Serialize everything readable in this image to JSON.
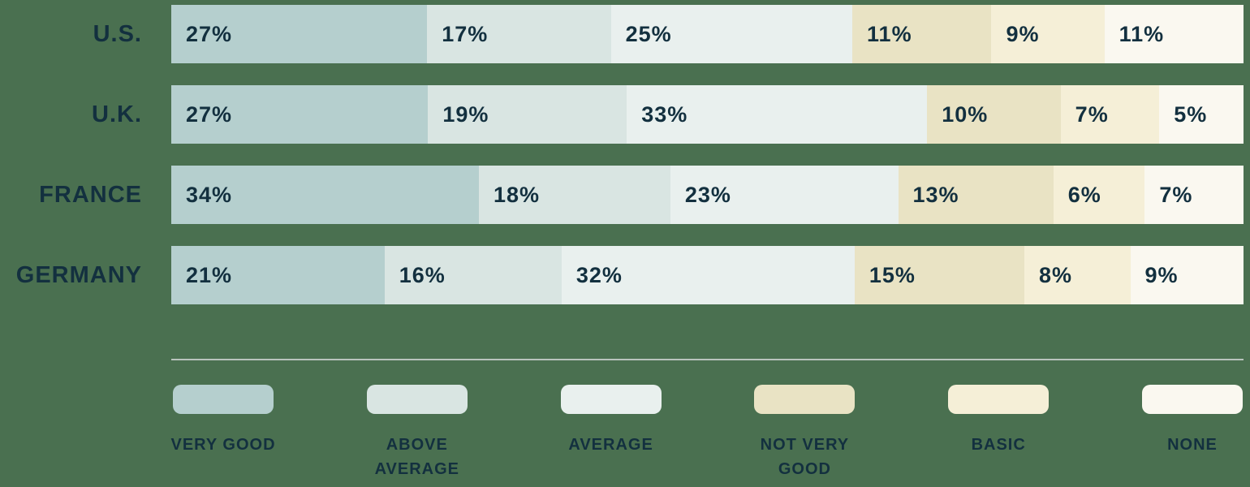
{
  "colors": {
    "background": "#4a7050",
    "text": "#13303f",
    "divider": "#b9c3bd"
  },
  "chart_data": {
    "type": "bar",
    "orientation": "horizontal",
    "stacked": true,
    "normalized_to_100_percent": true,
    "grid": false,
    "legend_position": "bottom",
    "value_suffix": "%",
    "categories": [
      "U.S.",
      "U.K.",
      "FRANCE",
      "GERMANY"
    ],
    "series": [
      {
        "name": "VERY GOOD",
        "label_lines": [
          "VERY GOOD"
        ],
        "color": "#b5cfce",
        "values": [
          27,
          27,
          34,
          21
        ]
      },
      {
        "name": "ABOVE AVERAGE",
        "label_lines": [
          "ABOVE",
          "AVERAGE"
        ],
        "color": "#d9e5e2",
        "values": [
          17,
          19,
          18,
          16
        ]
      },
      {
        "name": "AVERAGE",
        "label_lines": [
          "AVERAGE"
        ],
        "color": "#e9f0ee",
        "values": [
          25,
          33,
          23,
          32
        ]
      },
      {
        "name": "NOT VERY GOOD",
        "label_lines": [
          "NOT VERY",
          "GOOD"
        ],
        "color": "#e9e3c4",
        "values": [
          11,
          10,
          13,
          15
        ]
      },
      {
        "name": "BASIC",
        "label_lines": [
          "BASIC"
        ],
        "color": "#f5efd7",
        "values": [
          9,
          7,
          6,
          8
        ]
      },
      {
        "name": "NONE",
        "label_lines": [
          "NONE"
        ],
        "color": "#faf8f0",
        "values": [
          11,
          5,
          7,
          9
        ]
      }
    ]
  }
}
